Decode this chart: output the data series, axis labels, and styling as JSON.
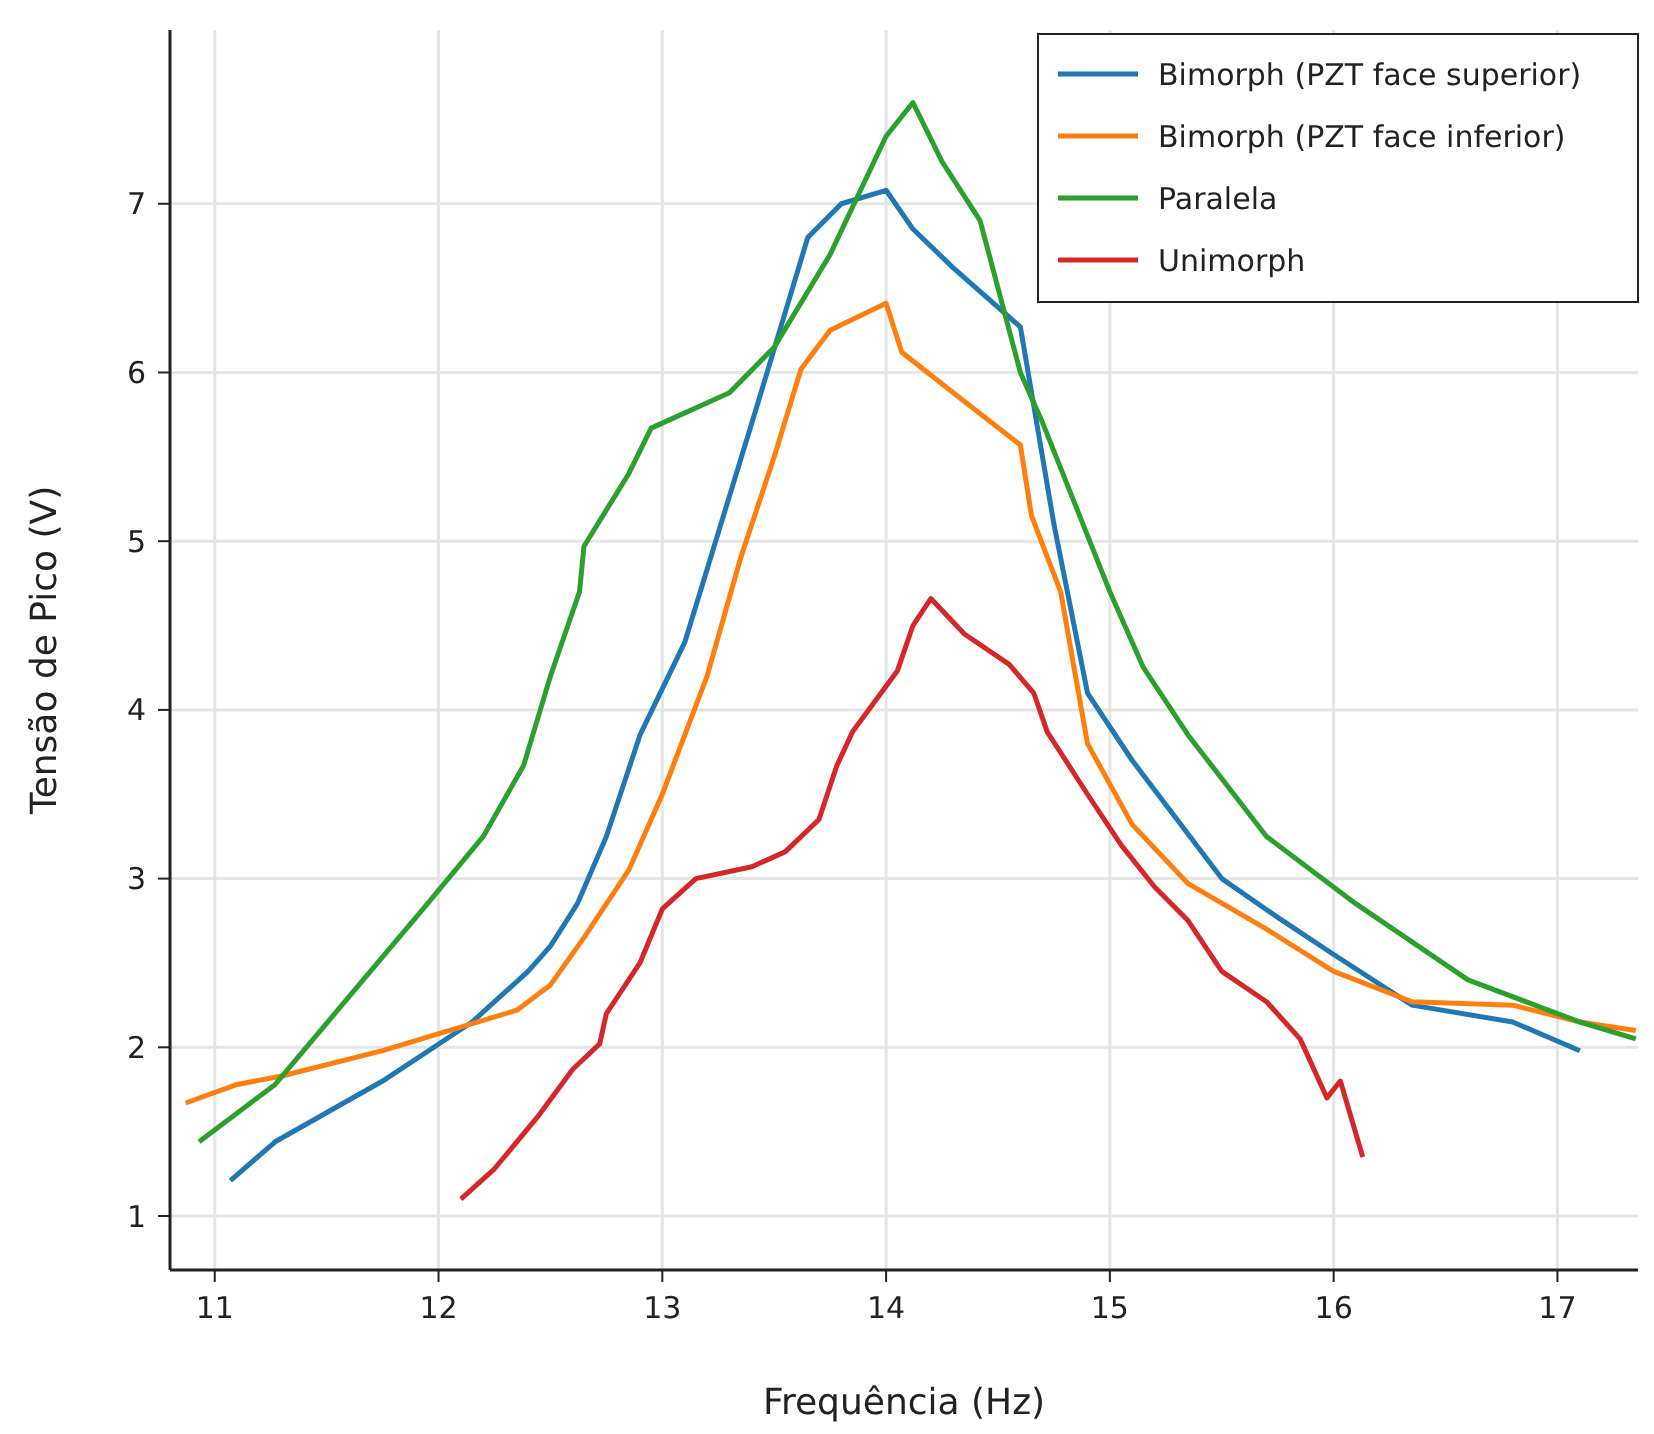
{
  "chart_data": {
    "type": "line",
    "xlabel": "Frequência (Hz)",
    "ylabel": "Tensão de Pico (V)",
    "xlim": [
      10.8,
      17.36
    ],
    "ylim": [
      0.68,
      8.03
    ],
    "xticks": [
      11,
      12,
      13,
      14,
      15,
      16,
      17
    ],
    "yticks": [
      1,
      2,
      3,
      4,
      5,
      6,
      7
    ],
    "grid": true,
    "legend": "top right",
    "marker": "none",
    "line_style": "solid",
    "series": [
      {
        "name": "Bimorph (PZT face superior)",
        "color": "#1f77b4",
        "x": [
          11.07,
          11.27,
          11.75,
          12.15,
          12.4,
          12.5,
          12.62,
          12.75,
          12.9,
          13.1,
          13.4,
          13.65,
          13.8,
          14.0,
          14.12,
          14.3,
          14.6,
          14.75,
          14.9,
          15.1,
          15.3,
          15.5,
          15.75,
          16.0,
          16.35,
          16.8,
          17.1
        ],
        "values": [
          1.21,
          1.44,
          1.8,
          2.15,
          2.45,
          2.6,
          2.85,
          3.25,
          3.85,
          4.4,
          5.7,
          6.8,
          7.0,
          7.08,
          6.85,
          6.62,
          6.27,
          5.1,
          4.1,
          3.7,
          3.35,
          3.0,
          2.77,
          2.55,
          2.25,
          2.15,
          1.98
        ]
      },
      {
        "name": "Bimorph (PZT face inferior)",
        "color": "#ff7f0e",
        "x": [
          10.87,
          11.1,
          11.3,
          11.75,
          12.05,
          12.35,
          12.5,
          12.65,
          12.85,
          13.0,
          13.2,
          13.35,
          13.5,
          13.62,
          13.75,
          14.0,
          14.07,
          14.3,
          14.6,
          14.65,
          14.78,
          14.9,
          15.1,
          15.35,
          15.7,
          16.0,
          16.35,
          16.8,
          17.1,
          17.35
        ],
        "values": [
          1.67,
          1.78,
          1.83,
          1.98,
          2.1,
          2.22,
          2.37,
          2.65,
          3.05,
          3.5,
          4.2,
          4.9,
          5.5,
          6.02,
          6.25,
          6.41,
          6.12,
          5.88,
          5.57,
          5.15,
          4.7,
          3.8,
          3.32,
          2.97,
          2.7,
          2.45,
          2.27,
          2.25,
          2.15,
          2.1
        ]
      },
      {
        "name": "Paralela",
        "color": "#2ca02c",
        "x": [
          10.93,
          11.27,
          11.6,
          11.95,
          12.2,
          12.38,
          12.5,
          12.63,
          12.65,
          12.85,
          12.95,
          13.3,
          13.5,
          13.75,
          14.0,
          14.12,
          14.25,
          14.42,
          14.6,
          14.7,
          14.85,
          15.0,
          15.15,
          15.35,
          15.7,
          16.1,
          16.6,
          17.1,
          17.35
        ],
        "values": [
          1.44,
          1.78,
          2.3,
          2.85,
          3.25,
          3.67,
          4.2,
          4.7,
          4.97,
          5.4,
          5.67,
          5.88,
          6.15,
          6.7,
          7.4,
          7.6,
          7.25,
          6.9,
          6.0,
          5.7,
          5.2,
          4.7,
          4.25,
          3.85,
          3.25,
          2.85,
          2.4,
          2.15,
          2.05
        ]
      },
      {
        "name": "Unimorph",
        "color": "#d62728",
        "x": [
          12.1,
          12.25,
          12.45,
          12.6,
          12.72,
          12.75,
          12.9,
          13.0,
          13.15,
          13.4,
          13.55,
          13.7,
          13.78,
          13.85,
          14.05,
          14.12,
          14.2,
          14.35,
          14.55,
          14.66,
          14.72,
          14.9,
          15.05,
          15.2,
          15.35,
          15.5,
          15.7,
          15.85,
          15.97,
          16.03,
          16.13
        ],
        "values": [
          1.1,
          1.28,
          1.6,
          1.87,
          2.02,
          2.2,
          2.5,
          2.82,
          3.0,
          3.07,
          3.16,
          3.35,
          3.67,
          3.87,
          4.23,
          4.5,
          4.66,
          4.45,
          4.27,
          4.1,
          3.87,
          3.5,
          3.2,
          2.95,
          2.75,
          2.45,
          2.27,
          2.05,
          1.7,
          1.8,
          1.35
        ]
      }
    ]
  }
}
